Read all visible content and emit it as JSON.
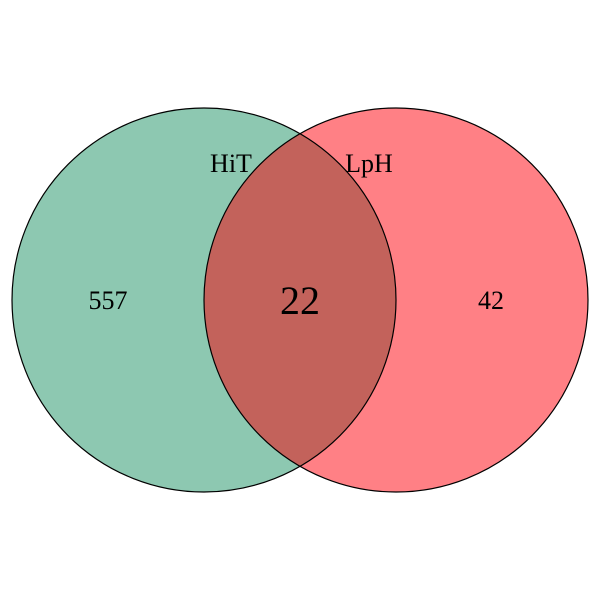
{
  "venn": {
    "sets": [
      {
        "name": "HiT",
        "only_count": "557",
        "color": "#8DC8B1"
      },
      {
        "name": "LpH",
        "only_count": "42",
        "color": "#FF8085"
      }
    ],
    "intersection": {
      "count": "22",
      "color": "#C3625B"
    },
    "stroke_color": "#000000",
    "background": "#FFFFFF"
  }
}
